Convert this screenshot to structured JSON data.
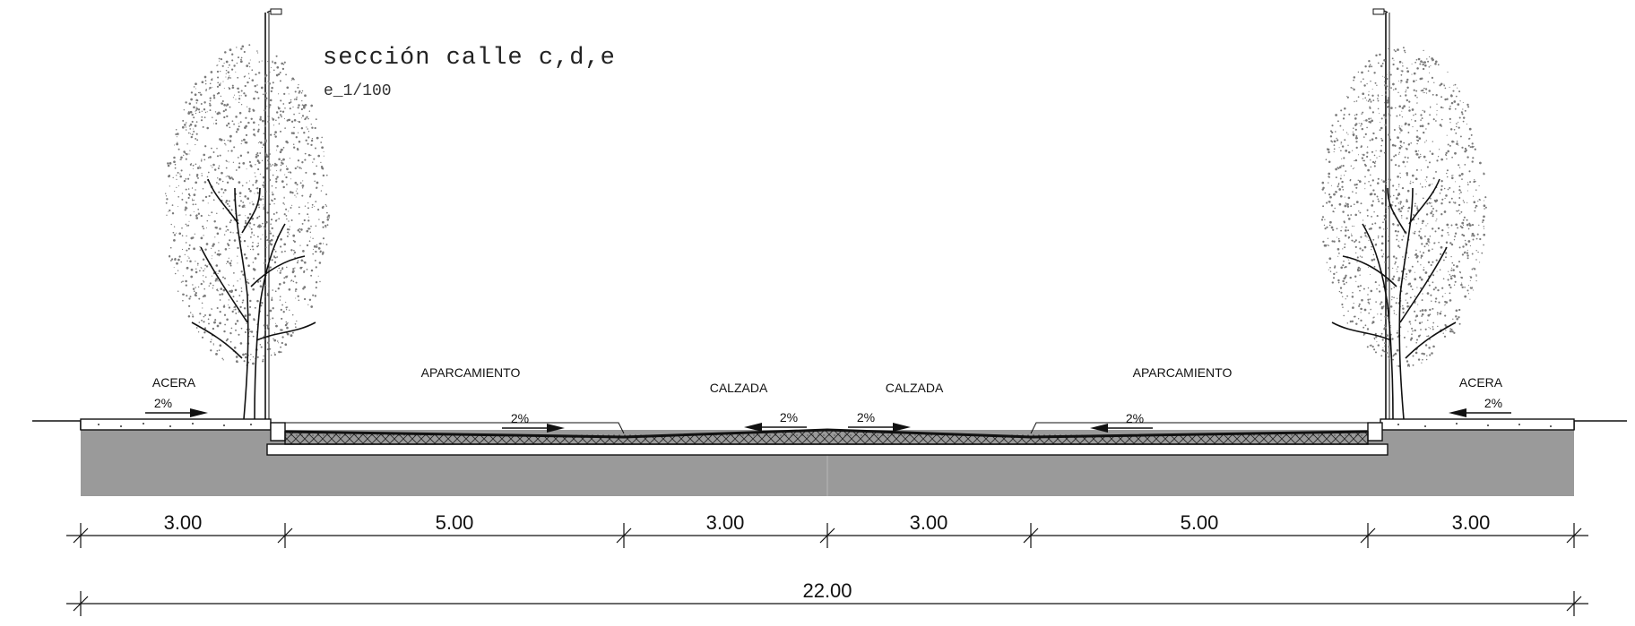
{
  "drawing": {
    "title": "sección calle c,d,e",
    "scale": "e_1/100"
  },
  "zones": [
    {
      "label": "ACERA"
    },
    {
      "label": "APARCAMIENTO"
    },
    {
      "label": "CALZADA"
    },
    {
      "label": "CALZADA"
    },
    {
      "label": "APARCAMIENTO"
    },
    {
      "label": "ACERA"
    }
  ],
  "slopes": [
    "2%",
    "2%",
    "2%",
    "2%",
    "2%",
    "2%"
  ],
  "dimensions": {
    "segments": [
      "3.00",
      "5.00",
      "3.00",
      "3.00",
      "5.00",
      "3.00"
    ],
    "total": "22.00"
  },
  "colors": {
    "ground": "#9a9a9a",
    "line": "#111111",
    "foliage": "#7a7a7a"
  }
}
